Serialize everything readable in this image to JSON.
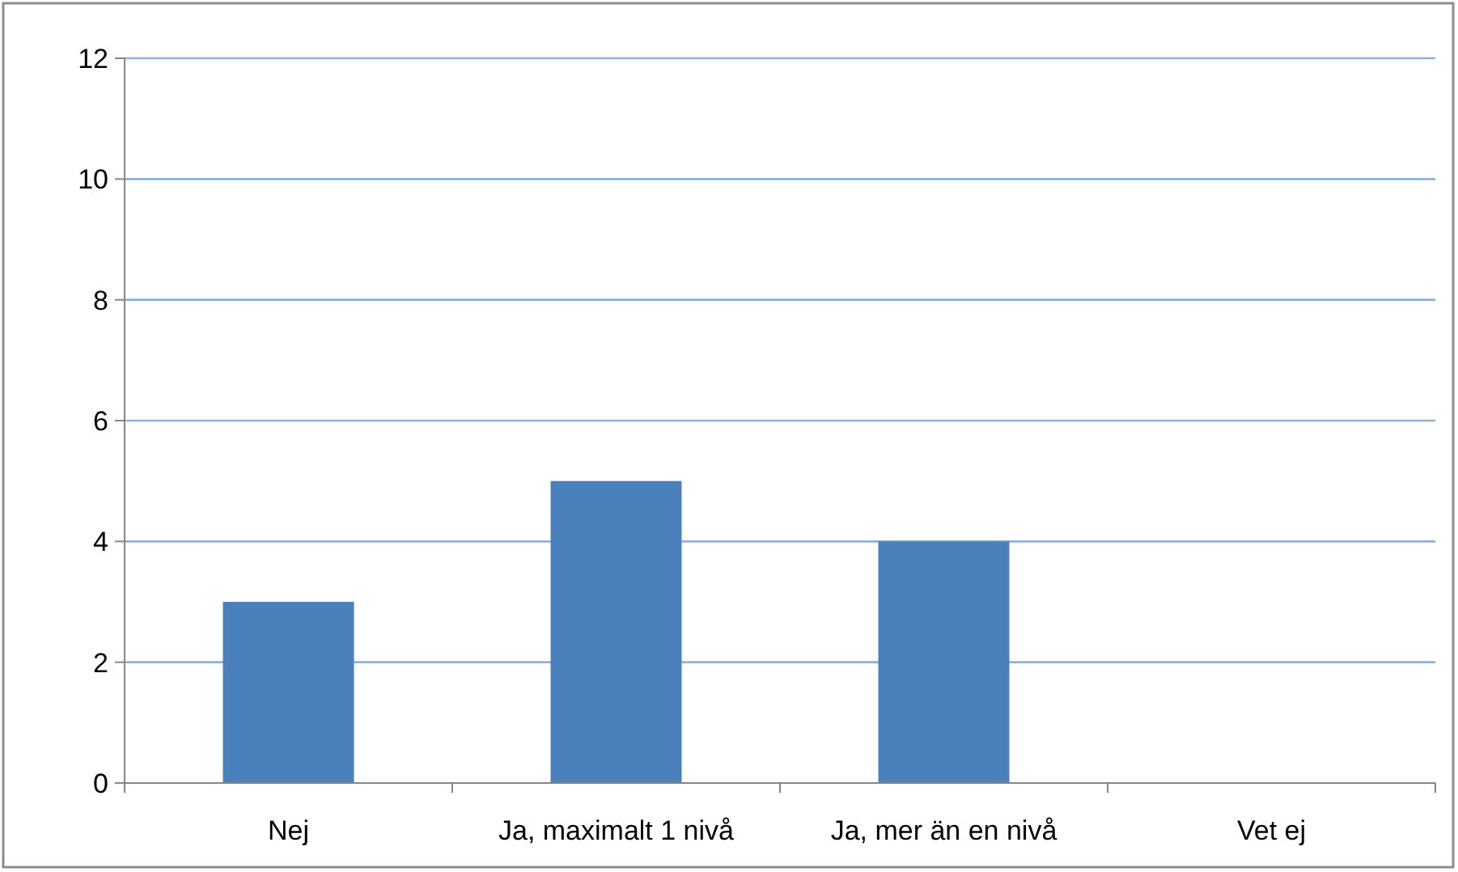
{
  "chart_data": {
    "type": "bar",
    "categories": [
      "Nej",
      "Ja, maximalt 1 nivå",
      "Ja, mer än en nivå",
      "Vet ej"
    ],
    "values": [
      3,
      5,
      4,
      0
    ],
    "color": "#4a81bd",
    "ylim": [
      0,
      12
    ],
    "yticks": [
      0,
      2,
      4,
      6,
      8,
      10,
      12
    ],
    "grid": "y"
  }
}
